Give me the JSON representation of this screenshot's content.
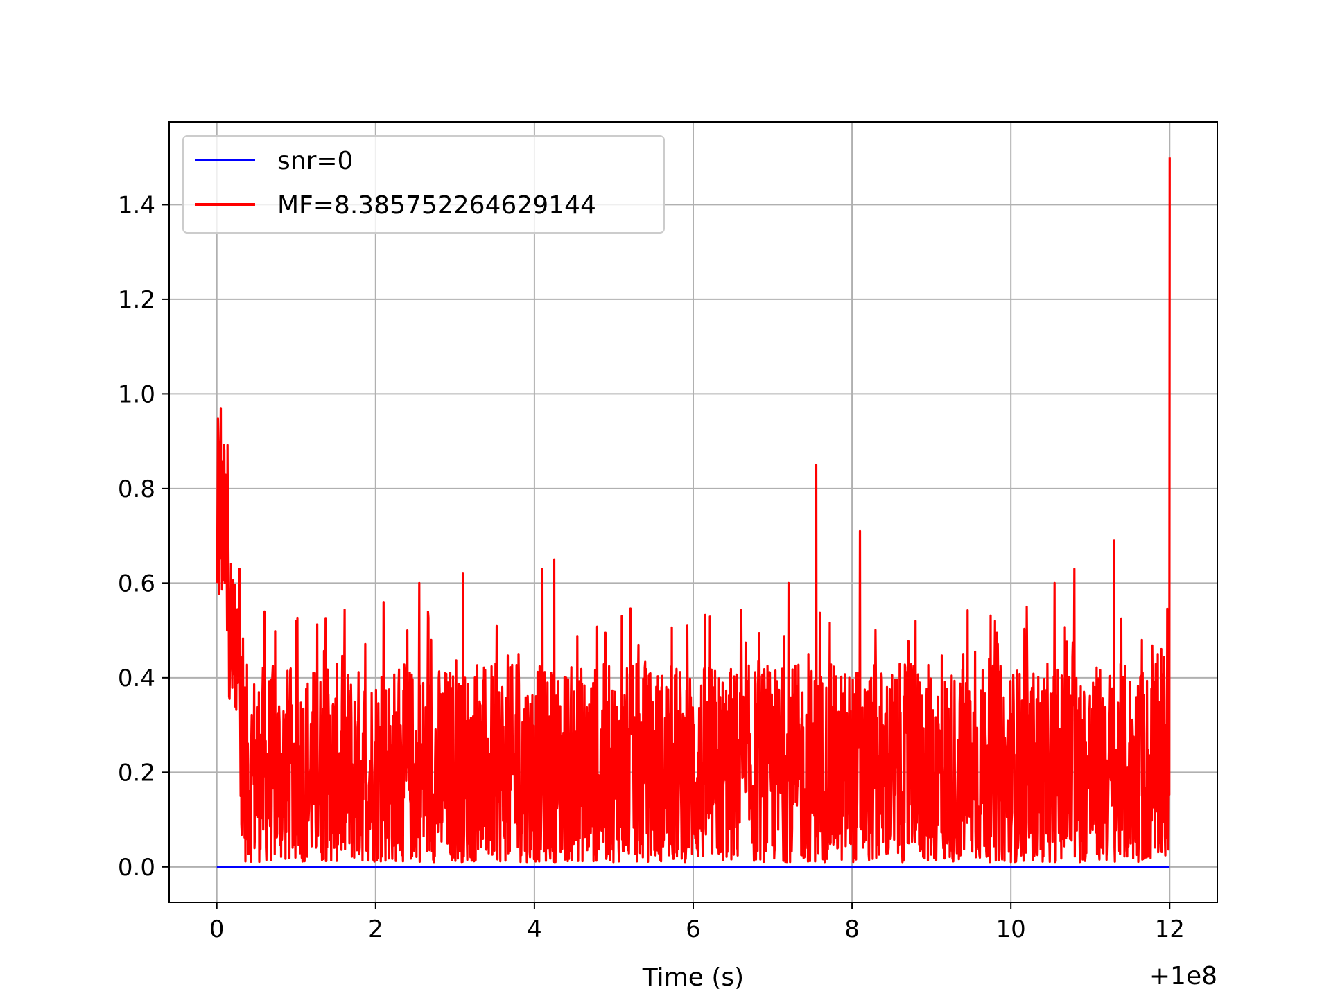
{
  "chart_data": {
    "type": "line",
    "title": "",
    "xlabel": "Time (s)",
    "ylabel": "",
    "x_offset_label": "+1e8",
    "xlim": [
      -0.6,
      12.6
    ],
    "ylim": [
      -0.075,
      1.575
    ],
    "xticks": [
      0,
      2,
      4,
      6,
      8,
      10,
      12
    ],
    "xtick_labels": [
      "0",
      "2",
      "4",
      "6",
      "8",
      "10",
      "12"
    ],
    "yticks": [
      0.0,
      0.2,
      0.4,
      0.6,
      0.8,
      1.0,
      1.2,
      1.4
    ],
    "ytick_labels": [
      "0.0",
      "0.2",
      "0.4",
      "0.6",
      "0.8",
      "1.0",
      "1.2",
      "1.4"
    ],
    "grid": true,
    "legend_position": "top-left",
    "series": [
      {
        "name": "snr=0",
        "color": "#0000ff",
        "x": [
          0,
          12
        ],
        "y": [
          0,
          0
        ]
      },
      {
        "name": "MF=8.385752264629144",
        "color": "#ff0000",
        "x": [
          0,
          0.02,
          0.05,
          0.08,
          0.1,
          0.13,
          0.2,
          0.3,
          0.45,
          0.6,
          0.9,
          1.0,
          1.5,
          2.1,
          2.4,
          2.55,
          2.7,
          3.1,
          3.3,
          3.8,
          4.1,
          4.25,
          4.4,
          5.1,
          5.6,
          6.2,
          6.6,
          7.2,
          7.45,
          7.55,
          7.6,
          8.1,
          8.3,
          8.8,
          9.4,
          9.8,
          10.2,
          10.55,
          10.8,
          11.3,
          11.65,
          11.85,
          11.95,
          12.0
        ],
        "y": [
          0.6,
          0.88,
          0.97,
          0.75,
          0.6,
          0.5,
          0.55,
          0.15,
          0.25,
          0.54,
          0.35,
          0.52,
          0.25,
          0.56,
          0.5,
          0.6,
          0.48,
          0.62,
          0.3,
          0.45,
          0.63,
          0.65,
          0.4,
          0.53,
          0.38,
          0.42,
          0.54,
          0.6,
          0.45,
          0.85,
          0.5,
          0.71,
          0.4,
          0.52,
          0.45,
          0.52,
          0.55,
          0.6,
          0.63,
          0.69,
          0.48,
          0.45,
          0.3,
          1.5
        ],
        "envelope_min": 0.0,
        "typical_range": [
          0.02,
          0.45
        ]
      }
    ]
  }
}
